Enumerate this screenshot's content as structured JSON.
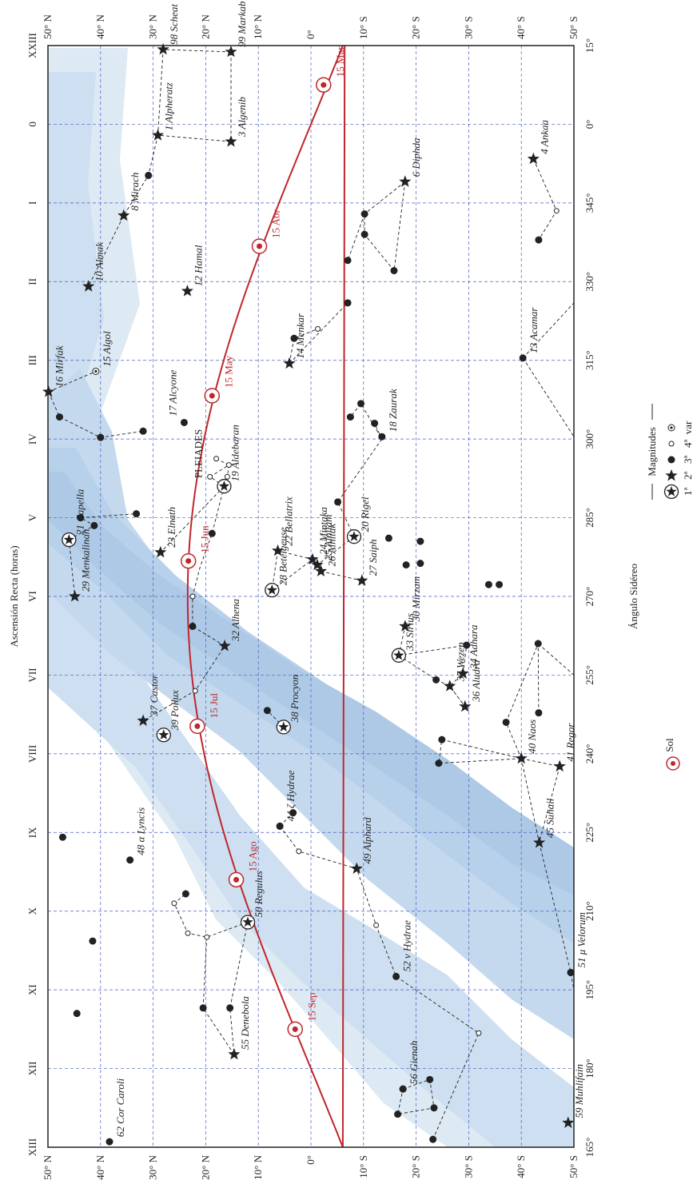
{
  "axes": {
    "title_ar": "Ascensión Recta (horas)",
    "title_sid": "Ángulo Sidéreo",
    "ra_hours": [
      "XIII",
      "XII",
      "XI",
      "X",
      "IX",
      "VIII",
      "VII",
      "VI",
      "V",
      "IV",
      "III",
      "II",
      "I",
      "0",
      "XXIII"
    ],
    "sid_angles": [
      "165°",
      "180°",
      "195°",
      "210°",
      "225°",
      "240°",
      "255°",
      "270°",
      "285°",
      "300°",
      "315°",
      "330°",
      "345°",
      "0°",
      "15°"
    ],
    "dec_labels": [
      "50° N",
      "40° N",
      "30° N",
      "20° N",
      "10° N",
      "0°",
      "10° S",
      "20° S",
      "30° S",
      "40° S",
      "50° S"
    ]
  },
  "legend": {
    "magnitudes_title": "Magnitudes",
    "mags": [
      "1ª",
      "2ª",
      "3ª",
      "4ª",
      "var"
    ],
    "sun_label": "Sol"
  },
  "sun_positions": [
    {
      "label": "15 Mar",
      "ra": 23.5,
      "dec": -2.4
    },
    {
      "label": "15 Abr",
      "ra": 1.55,
      "dec": 9.8
    },
    {
      "label": "15 May",
      "ra": 3.45,
      "dec": 18.8
    },
    {
      "label": "15 Jun",
      "ra": 5.55,
      "dec": 23.3
    },
    {
      "label": "15 Jul",
      "ra": 7.65,
      "dec": 21.6
    },
    {
      "label": "15 Ago",
      "ra": 9.6,
      "dec": 14.2
    },
    {
      "label": "15 Sep",
      "ra": 11.5,
      "dec": 3.0
    }
  ],
  "stars": [
    {
      "label": "98 Scheat",
      "ra": 23.05,
      "dec": 28.1,
      "mag": 2
    },
    {
      "label": "99 Markab",
      "ra": 23.08,
      "dec": 15.2,
      "mag": 2
    },
    {
      "label": "1 Alpheratz",
      "ra": 0.14,
      "dec": 29.1,
      "mag": 2
    },
    {
      "label": "3 Algenib",
      "ra": 0.22,
      "dec": 15.2,
      "mag": 2
    },
    {
      "label": "8 Mirach",
      "ra": 1.16,
      "dec": 35.6,
      "mag": 2
    },
    {
      "label": "10 Almak",
      "ra": 2.06,
      "dec": 42.3,
      "mag": 2
    },
    {
      "label": "12 Hamal",
      "ra": 2.12,
      "dec": 23.5,
      "mag": 2
    },
    {
      "label": "15 Algol",
      "ra": 3.14,
      "dec": 40.9,
      "mag": 5
    },
    {
      "label": "16 Mirfak",
      "ra": 3.4,
      "dec": 49.9,
      "mag": 2
    },
    {
      "label": "17 Alcyone",
      "ra": 3.79,
      "dec": 24.1,
      "mag": 3
    },
    {
      "label": "14 Menkar",
      "ra": 3.04,
      "dec": 4.1,
      "mag": 2
    },
    {
      "label": "13 Acamar",
      "ra": 2.97,
      "dec": -40.3,
      "mag": 3
    },
    {
      "label": "18 Zaurak",
      "ra": 3.97,
      "dec": -13.5,
      "mag": 3
    },
    {
      "label": "6 Diphda",
      "ra": 0.73,
      "dec": -17.9,
      "mag": 2
    },
    {
      "label": "4 Ankaa",
      "ra": 0.44,
      "dec": -42.3,
      "mag": 2
    },
    {
      "label": "21 Capella",
      "ra": 5.28,
      "dec": 46.0,
      "mag": 1
    },
    {
      "label": "23 Elnath",
      "ra": 5.44,
      "dec": 28.6,
      "mag": 2
    },
    {
      "label": "19 Aldebaran",
      "ra": 4.6,
      "dec": 16.5,
      "mag": 1
    },
    {
      "label": "22 Bellatrix",
      "ra": 5.42,
      "dec": 6.3,
      "mag": 2
    },
    {
      "label": "24 Mintaka",
      "ra": 5.53,
      "dec": -0.3,
      "mag": 2
    },
    {
      "label": "25 Alnilam",
      "ra": 5.6,
      "dec": -1.2,
      "mag": 2
    },
    {
      "label": "26 Alnitak",
      "ra": 5.68,
      "dec": -1.9,
      "mag": 2
    },
    {
      "label": "20 Rigel",
      "ra": 5.24,
      "dec": -8.2,
      "mag": 1
    },
    {
      "label": "27 Saiph",
      "ra": 5.8,
      "dec": -9.7,
      "mag": 2
    },
    {
      "label": "28 Betelgeuse",
      "ra": 5.92,
      "dec": 7.4,
      "mag": 1
    },
    {
      "label": "29 Menkalinan",
      "ra": 6.0,
      "dec": 44.9,
      "mag": 2
    },
    {
      "label": "32 Alhena",
      "ra": 6.63,
      "dec": 16.4,
      "mag": 2
    },
    {
      "label": "30 Mirzam",
      "ra": 6.38,
      "dec": -17.9,
      "mag": 2
    },
    {
      "label": "33 Sirius",
      "ra": 6.75,
      "dec": -16.7,
      "mag": 1
    },
    {
      "label": "35 Wezen",
      "ra": 7.14,
      "dec": -26.4,
      "mag": 2
    },
    {
      "label": "34 Adhara",
      "ra": 6.98,
      "dec": -28.9,
      "mag": 2
    },
    {
      "label": "36 Aludra",
      "ra": 7.4,
      "dec": -29.3,
      "mag": 2
    },
    {
      "label": "37 Castor",
      "ra": 7.58,
      "dec": 31.9,
      "mag": 2
    },
    {
      "label": "39 Pollux",
      "ra": 7.76,
      "dec": 28.0,
      "mag": 1
    },
    {
      "label": "38 Procyon",
      "ra": 7.66,
      "dec": 5.2,
      "mag": 1
    },
    {
      "label": "40 Naos",
      "ra": 8.06,
      "dec": -40.0,
      "mag": 2
    },
    {
      "label": "41 Regor",
      "ra": 8.16,
      "dec": -47.3,
      "mag": 2
    },
    {
      "label": "44 ζ Hydrae",
      "ra": 8.92,
      "dec": 5.9,
      "mag": 3
    },
    {
      "label": "45 Suhail",
      "ra": 9.13,
      "dec": -43.4,
      "mag": 2
    },
    {
      "label": "48 α Lyncis",
      "ra": 9.35,
      "dec": 34.4,
      "mag": 3
    },
    {
      "label": "49 Alphard",
      "ra": 9.46,
      "dec": -8.7,
      "mag": 2
    },
    {
      "label": "50 Regulus",
      "ra": 10.14,
      "dec": 12.0,
      "mag": 1
    },
    {
      "label": "51 μ Velorum",
      "ra": 10.78,
      "dec": -49.4,
      "mag": 3
    },
    {
      "label": "52 ν Hydrae",
      "ra": 10.83,
      "dec": -16.2,
      "mag": 3
    },
    {
      "label": "55 Denebola",
      "ra": 11.82,
      "dec": 14.6,
      "mag": 2
    },
    {
      "label": "56 Gienah",
      "ra": 12.26,
      "dec": -17.5,
      "mag": 3
    },
    {
      "label": "59 Muhlifain",
      "ra": 12.69,
      "dec": -48.9,
      "mag": 2
    },
    {
      "label": "62 Cor Caroli",
      "ra": 12.93,
      "dec": 38.3,
      "mag": 3
    },
    {
      "label": "PLEIADES",
      "ra": 3.78,
      "dec": 21.5,
      "mag": 0
    }
  ]
}
